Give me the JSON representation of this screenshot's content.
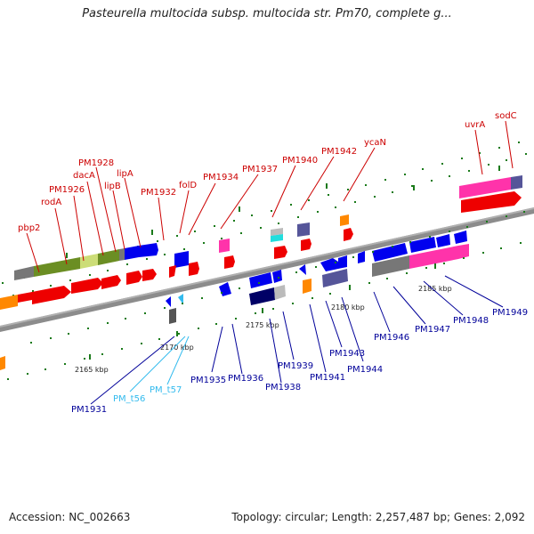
{
  "title": "Pasteurella multocida subsp. multocida str. Pm70, complete g...",
  "footer": {
    "accession": "Accession: NC_002663",
    "summary": "Topology: circular; Length: 2,257,487 bp; Genes: 2,092"
  },
  "colors": {
    "backbone": "#8c8c8c",
    "label_top": "#cc0000",
    "label_bottom": "#000099",
    "label_trna": "#33bbee",
    "tick": "#1a7a1a"
  },
  "ruler": [
    "2165 kbp",
    "2170 kbp",
    "2175 kbp",
    "2180 kbp",
    "2185 kbp"
  ],
  "labels_top": [
    "pbp2",
    "rodA",
    "PM1926",
    "dacA",
    "PM1928",
    "lipB",
    "lipA",
    "PM1932",
    "folD",
    "PM1934",
    "PM1937",
    "PM1940",
    "PM1942",
    "ycaN",
    "uvrA",
    "sodC"
  ],
  "labels_bottom": [
    "PM1931",
    "PM_t56",
    "PM_t57",
    "PM1935",
    "PM1936",
    "PM1938",
    "PM1939",
    "PM1941",
    "PM1943",
    "PM1944",
    "PM1946",
    "PM1947",
    "PM1948",
    "PM1949"
  ]
}
